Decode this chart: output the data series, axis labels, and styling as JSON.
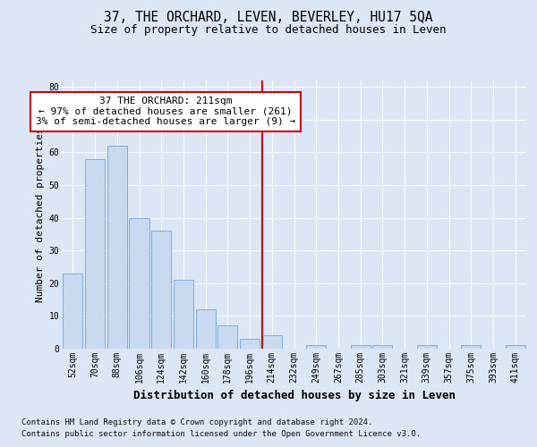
{
  "title": "37, THE ORCHARD, LEVEN, BEVERLEY, HU17 5QA",
  "subtitle": "Size of property relative to detached houses in Leven",
  "xlabel": "Distribution of detached houses by size in Leven",
  "ylabel": "Number of detached properties",
  "bar_labels": [
    "52sqm",
    "70sqm",
    "88sqm",
    "106sqm",
    "124sqm",
    "142sqm",
    "160sqm",
    "178sqm",
    "196sqm",
    "214sqm",
    "232sqm",
    "249sqm",
    "267sqm",
    "285sqm",
    "303sqm",
    "321sqm",
    "339sqm",
    "357sqm",
    "375sqm",
    "393sqm",
    "411sqm"
  ],
  "bar_values": [
    23,
    58,
    62,
    40,
    36,
    21,
    12,
    7,
    3,
    4,
    0,
    1,
    0,
    1,
    1,
    0,
    1,
    0,
    1,
    0,
    1
  ],
  "bar_color": "#c9d9f0",
  "bar_edge_color": "#6fa8d6",
  "red_line_color": "#cc0000",
  "property_line_index": 9,
  "ylim_max": 82,
  "yticks": [
    0,
    10,
    20,
    30,
    40,
    50,
    60,
    70,
    80
  ],
  "annotation_line1": "37 THE ORCHARD: 211sqm",
  "annotation_line2": "← 97% of detached houses are smaller (261)",
  "annotation_line3": "3% of semi-detached houses are larger (9) →",
  "bg_color": "#dde6f5",
  "plot_bg_color": "#dde6f5",
  "grid_color": "#ffffff",
  "footer_line1": "Contains HM Land Registry data © Crown copyright and database right 2024.",
  "footer_line2": "Contains public sector information licensed under the Open Government Licence v3.0.",
  "title_fontsize": 10.5,
  "subtitle_fontsize": 9,
  "xlabel_fontsize": 9,
  "ylabel_fontsize": 8,
  "tick_fontsize": 7,
  "annotation_fontsize": 8,
  "footer_fontsize": 6.5
}
